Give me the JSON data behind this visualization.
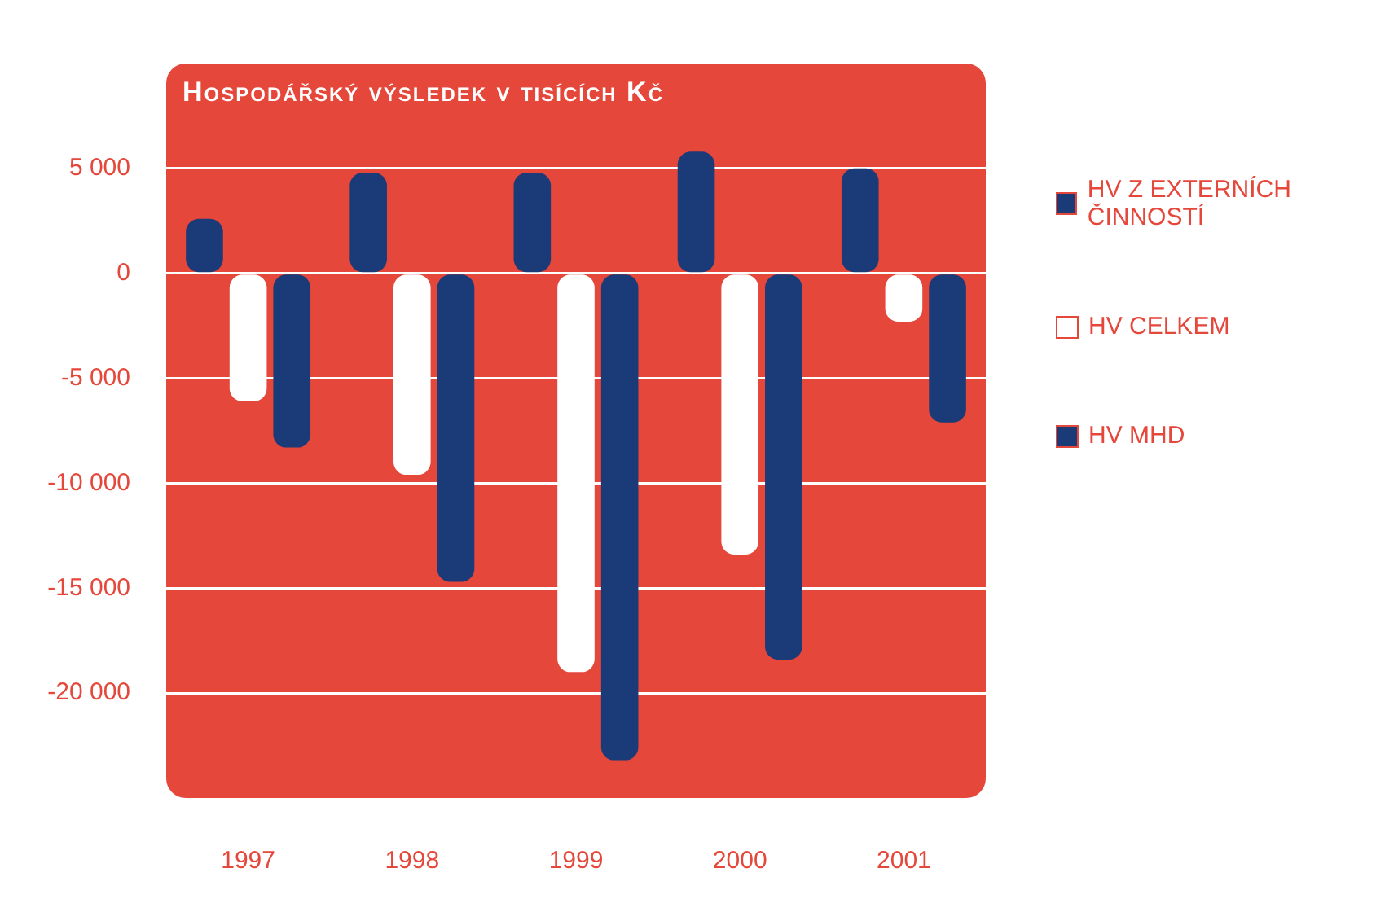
{
  "chart_data": {
    "type": "bar",
    "title": "Hospodářský výsledek v tisících Kč",
    "categories": [
      "1997",
      "1998",
      "1999",
      "2000",
      "2001"
    ],
    "series": [
      {
        "name": "HV Z EXTERNÍCH ČINNOSTÍ",
        "color": "#1b3a78",
        "values": [
          2600,
          4800,
          4800,
          5800,
          5000
        ]
      },
      {
        "name": "HV CELKEM",
        "color": "#ffffff",
        "values": [
          -6100,
          -9600,
          -19000,
          -13400,
          -2300
        ]
      },
      {
        "name": "HV MHD",
        "color": "#1b3a78",
        "values": [
          -8300,
          -14700,
          -23200,
          -18400,
          -7100
        ]
      }
    ],
    "ylim": [
      -25000,
      10000
    ],
    "yticks": [
      {
        "value": 5000,
        "label": "5 000"
      },
      0,
      {
        "value": -5000,
        "label": "-5 000"
      },
      {
        "value": -10000,
        "label": "-10 000"
      },
      {
        "value": -15000,
        "label": "-15 000"
      },
      {
        "value": -20000,
        "label": "-20 000"
      }
    ],
    "grid": "y",
    "legend": "right"
  }
}
